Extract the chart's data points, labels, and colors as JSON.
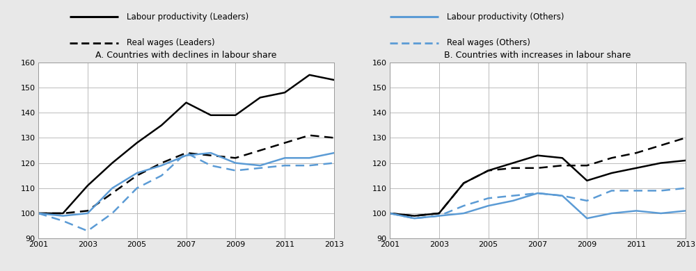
{
  "years": [
    2001,
    2002,
    2003,
    2004,
    2005,
    2006,
    2007,
    2008,
    2009,
    2010,
    2011,
    2012,
    2013
  ],
  "panel_A": {
    "title": "A. Countries with declines in labour share",
    "labour_prod_leaders": [
      100,
      100,
      111,
      120,
      128,
      135,
      144,
      139,
      139,
      146,
      148,
      155,
      153
    ],
    "real_wages_leaders": [
      100,
      100,
      101,
      108,
      115,
      120,
      124,
      123,
      122,
      125,
      128,
      131,
      130
    ],
    "labour_prod_others": [
      100,
      99,
      100,
      110,
      116,
      119,
      123,
      124,
      120,
      119,
      122,
      122,
      124
    ],
    "real_wages_others": [
      100,
      97,
      93,
      100,
      110,
      115,
      124,
      119,
      117,
      118,
      119,
      119,
      120
    ]
  },
  "panel_B": {
    "title": "B. Countries with increases in labour share",
    "labour_prod_leaders": [
      100,
      99,
      100,
      112,
      117,
      120,
      123,
      122,
      113,
      116,
      118,
      120,
      121
    ],
    "real_wages_leaders": [
      100,
      99,
      100,
      112,
      117,
      118,
      118,
      119,
      119,
      122,
      124,
      127,
      130
    ],
    "labour_prod_others": [
      100,
      98,
      99,
      100,
      103,
      105,
      108,
      107,
      98,
      100,
      101,
      100,
      101
    ],
    "real_wages_others": [
      100,
      98,
      99,
      103,
      106,
      107,
      108,
      107,
      105,
      109,
      109,
      109,
      110
    ]
  },
  "colors": {
    "leaders_solid": "#000000",
    "others_solid": "#5b9bd5",
    "leaders_dashed": "#000000",
    "others_dashed": "#5b9bd5"
  },
  "legend_items": [
    {
      "label": "Labour productivity (Leaders)",
      "color": "#000000",
      "linestyle": "solid",
      "col": 0,
      "row": 0
    },
    {
      "label": "Real wages (Leaders)",
      "color": "#000000",
      "linestyle": "dashed",
      "col": 0,
      "row": 1
    },
    {
      "label": "Labour productivity (Others)",
      "color": "#5b9bd5",
      "linestyle": "solid",
      "col": 1,
      "row": 0
    },
    {
      "label": "Real wages (Others)",
      "color": "#5b9bd5",
      "linestyle": "dashed",
      "col": 1,
      "row": 1
    }
  ],
  "ylim": [
    90,
    160
  ],
  "yticks": [
    90,
    100,
    110,
    120,
    130,
    140,
    150,
    160
  ],
  "xticks": [
    2001,
    2003,
    2005,
    2007,
    2009,
    2011,
    2013
  ],
  "background_color": "#e8e8e8",
  "plot_bg_color": "#ffffff",
  "grid_color": "#bbbbbb",
  "linewidth": 1.8,
  "title_fontsize": 9,
  "tick_fontsize": 8,
  "legend_fontsize": 8.5
}
